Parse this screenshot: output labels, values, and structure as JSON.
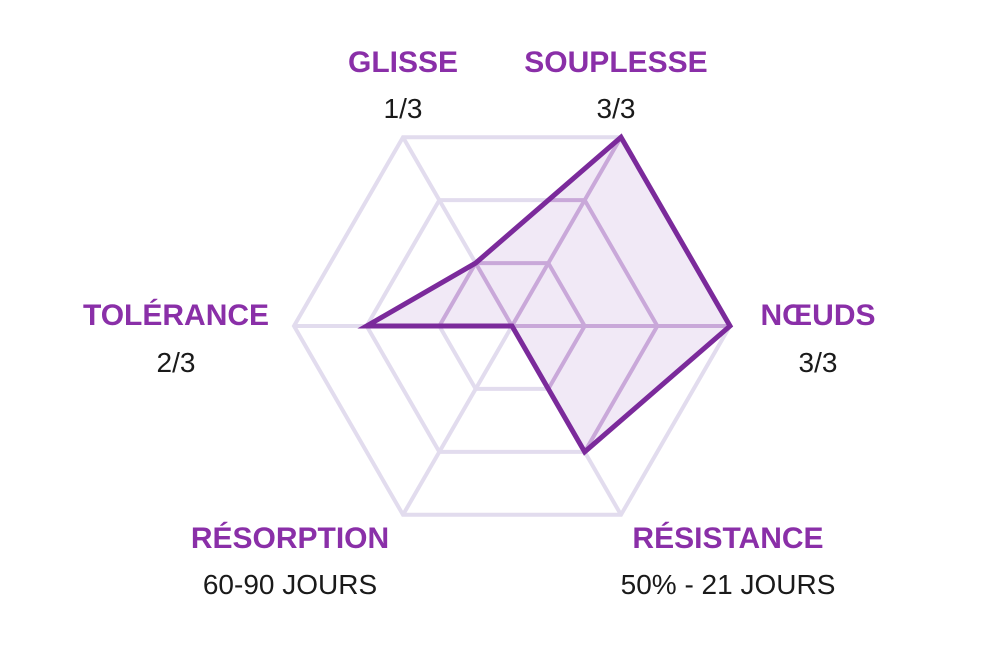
{
  "chart_data": {
    "type": "radar",
    "max": 3,
    "levels": 3,
    "axes": [
      {
        "name": "SOUPLESSE",
        "value": 3,
        "display": "3/3"
      },
      {
        "name": "NŒUDS",
        "value": 3,
        "display": "3/3"
      },
      {
        "name": "RÉSISTANCE",
        "value": 2,
        "display": "50% - 21 JOURS"
      },
      {
        "name": "RÉSORPTION",
        "value": 0,
        "display": "60-90 JOURS"
      },
      {
        "name": "TOLÉRANCE",
        "value": 2,
        "display": "2/3"
      },
      {
        "name": "GLISSE",
        "value": 1,
        "display": "1/3"
      }
    ]
  },
  "colors": {
    "accent": "#7b2a9b",
    "label": "#8a2fa8",
    "grid": "#e2dcee",
    "inner_grid": "#c9a8d9",
    "fill": "#eee5f4"
  }
}
